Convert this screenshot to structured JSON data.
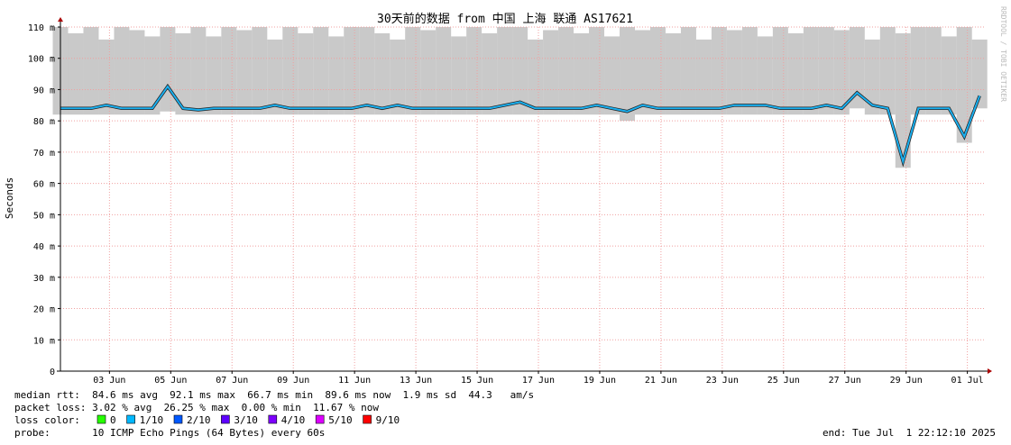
{
  "chart_data": {
    "type": "smokeping",
    "title": "30天前的数据 from 中国 上海 联通 AS17621",
    "y_label": "Seconds",
    "watermark": "RRDTOOL / TOBI OETIKER",
    "grid": true,
    "x": [
      0,
      0.5,
      1,
      1.5,
      2,
      2.5,
      3,
      3.5,
      4,
      4.5,
      5,
      5.5,
      6,
      6.5,
      7,
      7.5,
      8,
      8.5,
      9,
      9.5,
      10,
      10.5,
      11,
      11.5,
      12,
      12.5,
      13,
      13.5,
      14,
      14.5,
      15,
      15.5,
      16,
      16.5,
      17,
      17.5,
      18,
      18.5,
      19,
      19.5,
      20,
      20.5,
      21,
      21.5,
      22,
      22.5,
      23,
      23.5,
      24,
      24.5,
      25,
      25.5,
      26,
      26.5,
      27,
      27.5,
      28,
      28.5,
      29,
      29.5,
      30
    ],
    "median": {
      "color": "#1ab0f0",
      "values": [
        84,
        84,
        84,
        85,
        84,
        84,
        84,
        91,
        84,
        83.5,
        84,
        84,
        84,
        84,
        85,
        84,
        84,
        84,
        84,
        84,
        85,
        84,
        85,
        84,
        84,
        84,
        84,
        84,
        84,
        85,
        86,
        84,
        84,
        84,
        84,
        85,
        84,
        83,
        85,
        84,
        84,
        84,
        84,
        84,
        85,
        85,
        85,
        84,
        84,
        84,
        85,
        84,
        89,
        85,
        84,
        67,
        84,
        84,
        84,
        75,
        88
      ]
    },
    "smoke": {
      "color": "#bbbbbb",
      "low": [
        82,
        82,
        82,
        82,
        82,
        82,
        82,
        83,
        82,
        82,
        82,
        82,
        82,
        82,
        82,
        82,
        82,
        82,
        82,
        82,
        82,
        82,
        82,
        82,
        82,
        82,
        82,
        82,
        82,
        82,
        82,
        82,
        82,
        82,
        82,
        82,
        82,
        80,
        82,
        82,
        82,
        82,
        82,
        82,
        82,
        82,
        82,
        82,
        82,
        82,
        82,
        82,
        84,
        82,
        82,
        65,
        82,
        82,
        82,
        73,
        84
      ],
      "high": [
        110,
        108,
        110,
        106,
        110,
        109,
        107,
        110,
        108,
        110,
        107,
        110,
        109,
        110,
        106,
        110,
        108,
        110,
        107,
        110,
        110,
        108,
        106,
        110,
        109,
        110,
        107,
        110,
        108,
        110,
        110,
        106,
        109,
        110,
        108,
        110,
        107,
        110,
        109,
        110,
        108,
        110,
        106,
        110,
        109,
        110,
        107,
        110,
        108,
        110,
        110,
        109,
        110,
        106,
        110,
        108,
        110,
        110,
        107,
        110,
        106
      ]
    },
    "xlim": [
      0,
      30.2
    ],
    "xticks": [
      {
        "value": 1.6,
        "label": "03 Jun"
      },
      {
        "value": 3.6,
        "label": "05 Jun"
      },
      {
        "value": 5.6,
        "label": "07 Jun"
      },
      {
        "value": 7.6,
        "label": "09 Jun"
      },
      {
        "value": 9.6,
        "label": "11 Jun"
      },
      {
        "value": 11.6,
        "label": "13 Jun"
      },
      {
        "value": 13.6,
        "label": "15 Jun"
      },
      {
        "value": 15.6,
        "label": "17 Jun"
      },
      {
        "value": 17.6,
        "label": "19 Jun"
      },
      {
        "value": 19.6,
        "label": "21 Jun"
      },
      {
        "value": 21.6,
        "label": "23 Jun"
      },
      {
        "value": 23.6,
        "label": "25 Jun"
      },
      {
        "value": 25.6,
        "label": "27 Jun"
      },
      {
        "value": 27.6,
        "label": "29 Jun"
      },
      {
        "value": 29.6,
        "label": "01 Jul"
      }
    ],
    "ylim": [
      0,
      110
    ],
    "yticks": [
      0,
      {
        "value": 10,
        "label": "10 m"
      },
      {
        "value": 20,
        "label": "20 m"
      },
      {
        "value": 30,
        "label": "30 m"
      },
      {
        "value": 40,
        "label": "40 m"
      },
      {
        "value": 50,
        "label": "50 m"
      },
      {
        "value": 60,
        "label": "60 m"
      },
      {
        "value": 70,
        "label": "70 m"
      },
      {
        "value": 80,
        "label": "80 m"
      },
      {
        "value": 90,
        "label": "90 m"
      },
      {
        "value": 100,
        "label": "100 m"
      },
      {
        "value": 110,
        "label": "110 m"
      }
    ]
  },
  "legend": {
    "median_rtt": "median rtt:  84.6 ms avg  92.1 ms max  66.7 ms min  89.6 ms now  1.9 ms sd  44.3   am/s",
    "packet_loss": "packet loss: 3.02 % avg  26.25 % max  0.00 % min  11.67 % now",
    "loss_color_label": "loss color:",
    "loss_colors": [
      {
        "name": "0",
        "color": "#26ff00"
      },
      {
        "name": "1/10",
        "color": "#00b8ff"
      },
      {
        "name": "2/10",
        "color": "#0059ff"
      },
      {
        "name": "3/10",
        "color": "#5e00ff"
      },
      {
        "name": "4/10",
        "color": "#7e00ff"
      },
      {
        "name": "5/10",
        "color": "#dd00ff"
      },
      {
        "name": "9/10",
        "color": "#ff0000"
      }
    ],
    "probe": "probe:       10 ICMP Echo Pings (64 Bytes) every 60s",
    "end": "end: Tue Jul  1 22:12:10 2025"
  }
}
